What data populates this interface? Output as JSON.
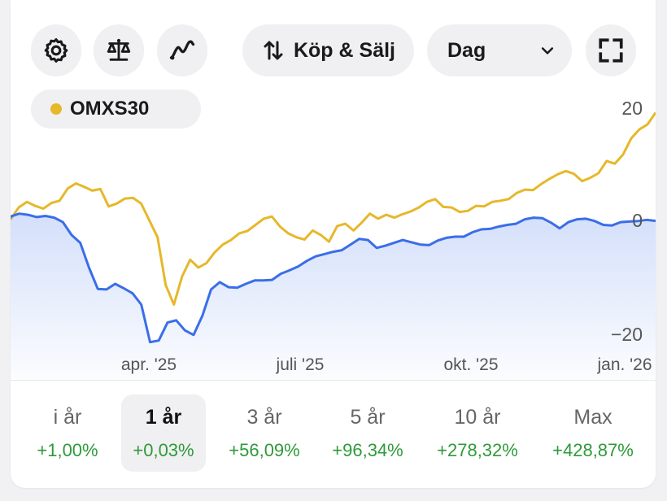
{
  "toolbar": {
    "settings_icon": "gear-icon",
    "compare_icon": "scale-icon",
    "indicators_icon": "trend-line-icon",
    "trade_label": "Köp & Sälj",
    "trade_icon": "up-down-arrows-icon",
    "period_select": "Dag",
    "period_icon": "chevron-down-icon",
    "fullscreen_icon": "fullscreen-icon"
  },
  "legend": {
    "label": "OMXS30",
    "color": "#e6b82a"
  },
  "chart_data": {
    "type": "line",
    "y_ticks": [
      "20",
      "0",
      "−20"
    ],
    "x_ticks": [
      "apr. '25",
      "juli '25",
      "okt. '25",
      "jan. '26"
    ],
    "ylim": [
      -22,
      22
    ],
    "grid": false,
    "series": [
      {
        "name": "OMXS30",
        "color": "#e6b82a",
        "values": [
          0.2,
          2.3,
          3.3,
          2.6,
          2.1,
          3.1,
          3.5,
          5.7,
          6.6,
          6.0,
          5.3,
          5.6,
          2.5,
          3.0,
          3.9,
          4.0,
          3.0,
          0.0,
          -3.0,
          -11.5,
          -15.0,
          -10.0,
          -7.0,
          -8.4,
          -7.6,
          -5.7,
          -4.3,
          -3.5,
          -2.3,
          -1.9,
          -0.8,
          0.3,
          0.7,
          -1.1,
          -2.3,
          -3.0,
          -3.4,
          -1.8,
          -2.6,
          -3.8,
          -1.0,
          -0.6,
          -1.8,
          -0.4,
          1.2,
          0.3,
          1.0,
          0.5,
          1.1,
          1.6,
          2.3,
          3.3,
          3.8,
          2.4,
          2.3,
          1.5,
          1.7,
          2.6,
          2.5,
          3.3,
          3.5,
          3.8,
          4.9,
          5.5,
          5.4,
          6.5,
          7.4,
          8.2,
          8.8,
          8.3,
          7.0,
          7.6,
          8.4,
          10.6,
          10.1,
          11.7,
          14.6,
          16.2,
          17.1,
          19.2
        ],
        "colors_note": ""
      },
      {
        "name": "",
        "color": "#3a6ee8",
        "values": [
          0.7,
          1.2,
          1.0,
          0.6,
          0.8,
          0.5,
          -0.3,
          -2.6,
          -4.0,
          -8.4,
          -12.2,
          -12.3,
          -11.3,
          -12.1,
          -13.0,
          -15.0,
          -21.7,
          -21.4,
          -18.2,
          -17.8,
          -19.6,
          -20.4,
          -17.0,
          -12.3,
          -11.0,
          -11.9,
          -12.0,
          -11.3,
          -10.7,
          -10.7,
          -10.6,
          -9.5,
          -8.9,
          -8.2,
          -7.2,
          -6.4,
          -6.0,
          -5.6,
          -5.3,
          -4.3,
          -3.3,
          -3.5,
          -4.9,
          -4.5,
          -4.0,
          -3.5,
          -3.9,
          -4.3,
          -4.4,
          -3.6,
          -3.1,
          -2.9,
          -2.9,
          -2.1,
          -1.6,
          -1.5,
          -1.1,
          -0.8,
          -0.6,
          0.2,
          0.5,
          0.4,
          -0.4,
          -1.4,
          -0.3,
          0.2,
          0.3,
          -0.1,
          -0.8,
          -0.9,
          -0.3,
          -0.2,
          -0.1,
          0.1,
          -0.1
        ]
      }
    ]
  },
  "periods": [
    {
      "label": "i år",
      "value": "+1,00%",
      "active": false
    },
    {
      "label": "1 år",
      "value": "+0,03%",
      "active": true
    },
    {
      "label": "3 år",
      "value": "+56,09%",
      "active": false
    },
    {
      "label": "5 år",
      "value": "+96,34%",
      "active": false
    },
    {
      "label": "10 år",
      "value": "+278,32%",
      "active": false
    },
    {
      "label": "Max",
      "value": "+428,87%",
      "active": false
    }
  ],
  "colors": {
    "positive": "#2e9a3a",
    "series_primary": "#e6b82a",
    "series_secondary": "#3a6ee8"
  }
}
